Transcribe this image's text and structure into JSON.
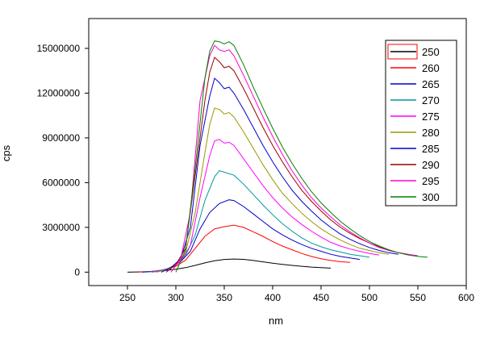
{
  "chart_data": {
    "type": "line",
    "title": "",
    "xlabel": "nm",
    "ylabel": "cps",
    "xlim": [
      210,
      600
    ],
    "ylim": [
      -900000,
      17000000
    ],
    "x_ticks": [
      250,
      300,
      350,
      400,
      450,
      500,
      550,
      600
    ],
    "y_ticks": [
      0,
      3000000,
      6000000,
      9000000,
      12000000,
      15000000
    ],
    "x_tick_labels": [
      "250",
      "300",
      "350",
      "400",
      "450",
      "500",
      "550",
      "600"
    ],
    "y_tick_labels": [
      "0",
      "3000000",
      "6000000",
      "9000000",
      "12000000",
      "15000000"
    ],
    "grid": false,
    "legend_position": "top-right",
    "series": [
      {
        "name": "250",
        "color": "#000000",
        "x": [
          250,
          260,
          270,
          280,
          290,
          300,
          310,
          320,
          330,
          340,
          350,
          360,
          370,
          380,
          390,
          400,
          410,
          420,
          430,
          440,
          450,
          460
        ],
        "y": [
          0,
          15000,
          30000,
          60000,
          120000,
          200000,
          300000,
          450000,
          620000,
          760000,
          850000,
          880000,
          860000,
          780000,
          690000,
          600000,
          520000,
          450000,
          390000,
          340000,
          300000,
          270000
        ]
      },
      {
        "name": "260",
        "color": "#ff0000",
        "x": [
          260,
          270,
          280,
          290,
          300,
          310,
          320,
          330,
          340,
          350,
          360,
          370,
          380,
          390,
          400,
          410,
          420,
          430,
          440,
          450,
          460,
          470,
          480
        ],
        "y": [
          0,
          30000,
          80000,
          200000,
          400000,
          800000,
          1600000,
          2400000,
          2900000,
          3050000,
          3150000,
          3000000,
          2700000,
          2400000,
          2050000,
          1750000,
          1500000,
          1250000,
          1050000,
          900000,
          780000,
          700000,
          650000
        ]
      },
      {
        "name": "265",
        "color": "#0000cc",
        "x": [
          265,
          275,
          285,
          295,
          305,
          315,
          325,
          335,
          345,
          355,
          360,
          370,
          380,
          390,
          400,
          410,
          420,
          430,
          440,
          450,
          460,
          470,
          480,
          490
        ],
        "y": [
          0,
          40000,
          120000,
          300000,
          700000,
          1400000,
          2900000,
          4000000,
          4600000,
          4850000,
          4800000,
          4400000,
          3900000,
          3400000,
          2900000,
          2500000,
          2150000,
          1850000,
          1600000,
          1400000,
          1200000,
          1050000,
          950000,
          850000
        ]
      },
      {
        "name": "270",
        "color": "#009999",
        "x": [
          270,
          280,
          290,
          300,
          310,
          320,
          330,
          340,
          345,
          350,
          360,
          370,
          380,
          390,
          400,
          410,
          420,
          430,
          440,
          450,
          460,
          470,
          480,
          490,
          500
        ],
        "y": [
          0,
          60000,
          200000,
          500000,
          1100000,
          2500000,
          4800000,
          6400000,
          6800000,
          6700000,
          6500000,
          5900000,
          5200000,
          4500000,
          3850000,
          3250000,
          2750000,
          2300000,
          1950000,
          1700000,
          1500000,
          1350000,
          1200000,
          1100000,
          1000000
        ]
      },
      {
        "name": "275",
        "color": "#ff00ff",
        "x": [
          275,
          285,
          295,
          305,
          315,
          325,
          335,
          340,
          345,
          350,
          355,
          360,
          370,
          380,
          390,
          400,
          410,
          420,
          430,
          440,
          450,
          460,
          470,
          480,
          490,
          500,
          510
        ],
        "y": [
          0,
          80000,
          300000,
          700000,
          1800000,
          5000000,
          7800000,
          8800000,
          8900000,
          8650000,
          8700000,
          8500000,
          7600000,
          6700000,
          5800000,
          5000000,
          4300000,
          3700000,
          3200000,
          2750000,
          2350000,
          2000000,
          1750000,
          1550000,
          1400000,
          1250000,
          1150000
        ]
      },
      {
        "name": "280",
        "color": "#999900",
        "x": [
          280,
          290,
          300,
          310,
          320,
          330,
          335,
          340,
          345,
          350,
          355,
          360,
          370,
          380,
          390,
          400,
          410,
          420,
          430,
          440,
          450,
          460,
          470,
          480,
          490,
          500,
          510,
          520
        ],
        "y": [
          0,
          150000,
          500000,
          1300000,
          4000000,
          8000000,
          9900000,
          11000000,
          10900000,
          10600000,
          10700000,
          10400000,
          9400000,
          8300000,
          7200000,
          6200000,
          5300000,
          4600000,
          3950000,
          3400000,
          2900000,
          2500000,
          2150000,
          1850000,
          1600000,
          1450000,
          1300000,
          1200000
        ]
      },
      {
        "name": "285",
        "color": "#0000cc",
        "x": [
          285,
          295,
          305,
          315,
          325,
          335,
          340,
          345,
          350,
          355,
          360,
          370,
          380,
          390,
          400,
          410,
          420,
          430,
          440,
          450,
          460,
          470,
          480,
          490,
          500,
          510,
          520,
          530
        ],
        "y": [
          0,
          300000,
          900000,
          3000000,
          8500000,
          11800000,
          13000000,
          12700000,
          12300000,
          12400000,
          12000000,
          10900000,
          9700000,
          8500000,
          7400000,
          6400000,
          5500000,
          4750000,
          4100000,
          3500000,
          3000000,
          2550000,
          2200000,
          1900000,
          1650000,
          1450000,
          1300000,
          1200000
        ]
      },
      {
        "name": "290",
        "color": "#990000",
        "x": [
          290,
          300,
          310,
          320,
          330,
          335,
          340,
          345,
          350,
          355,
          360,
          370,
          380,
          390,
          400,
          410,
          420,
          430,
          440,
          450,
          460,
          470,
          480,
          490,
          500,
          510,
          520,
          530,
          540
        ],
        "y": [
          0,
          500000,
          1600000,
          6500000,
          11500000,
          13400000,
          14400000,
          14100000,
          13700000,
          13800000,
          13500000,
          12300000,
          11000000,
          9700000,
          8500000,
          7400000,
          6400000,
          5500000,
          4750000,
          4100000,
          3500000,
          3000000,
          2600000,
          2250000,
          1950000,
          1700000,
          1450000,
          1300000,
          1200000
        ]
      },
      {
        "name": "295",
        "color": "#ff00cc",
        "x": [
          295,
          305,
          315,
          325,
          335,
          340,
          345,
          350,
          355,
          360,
          370,
          380,
          390,
          400,
          410,
          420,
          430,
          440,
          450,
          460,
          470,
          480,
          490,
          500,
          510,
          520,
          530,
          540,
          550
        ],
        "y": [
          0,
          900000,
          4000000,
          11500000,
          14500000,
          15200000,
          14900000,
          14800000,
          14900000,
          14500000,
          13200000,
          11800000,
          10400000,
          9100000,
          7900000,
          6800000,
          5850000,
          5000000,
          4300000,
          3700000,
          3150000,
          2700000,
          2300000,
          1950000,
          1650000,
          1450000,
          1300000,
          1200000,
          1100000
        ]
      },
      {
        "name": "300",
        "color": "#008000",
        "x": [
          300,
          310,
          320,
          330,
          335,
          340,
          345,
          350,
          355,
          360,
          370,
          380,
          390,
          400,
          410,
          420,
          430,
          440,
          450,
          460,
          470,
          480,
          490,
          500,
          510,
          520,
          530,
          540,
          550,
          560
        ],
        "y": [
          0,
          1500000,
          7000000,
          13000000,
          14800000,
          15500000,
          15450000,
          15300000,
          15450000,
          15200000,
          13900000,
          12400000,
          11000000,
          9650000,
          8400000,
          7300000,
          6300000,
          5400000,
          4650000,
          4000000,
          3400000,
          2900000,
          2450000,
          2050000,
          1750000,
          1500000,
          1300000,
          1150000,
          1050000,
          1000000
        ]
      }
    ]
  }
}
